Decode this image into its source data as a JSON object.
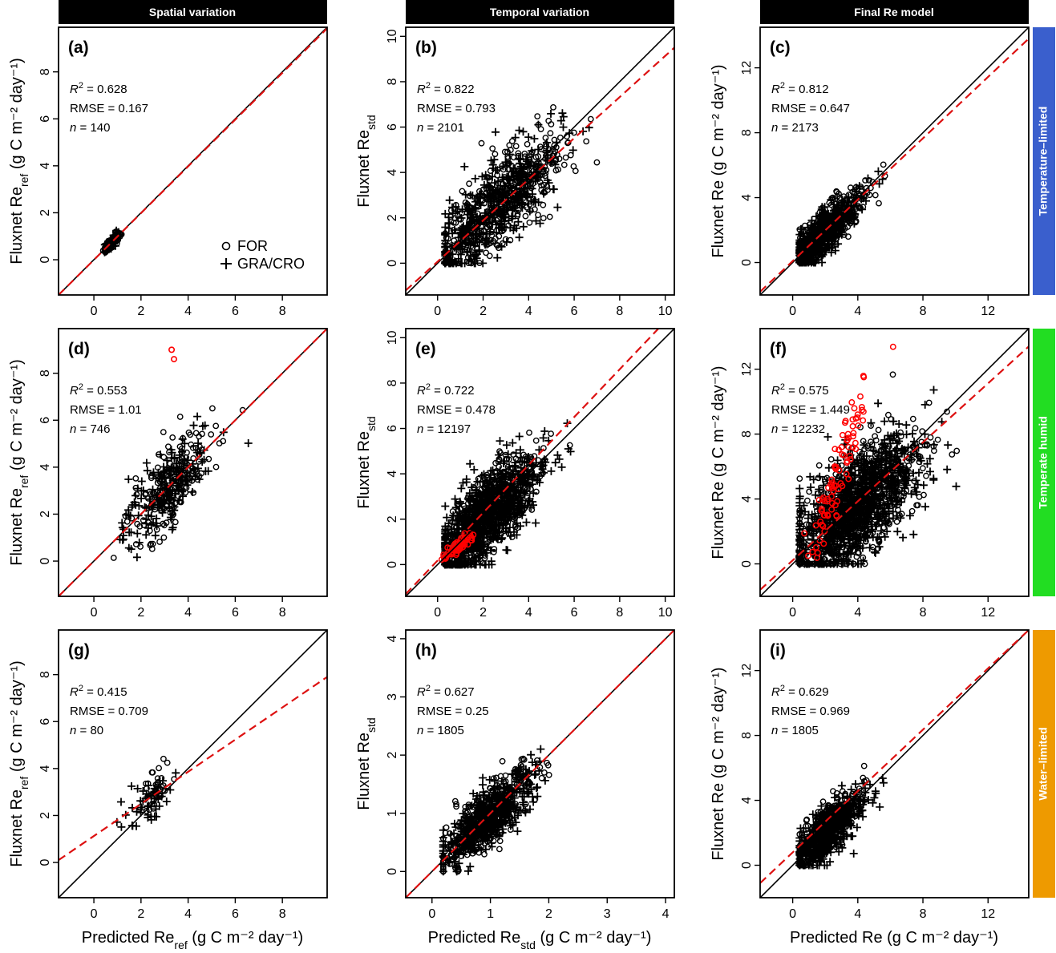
{
  "column_headers": [
    "Spatial variation",
    "Temporal variation",
    "Final Re model"
  ],
  "row_labels": [
    {
      "text": "Temperature–limited",
      "color": "#3a5fcd"
    },
    {
      "text": "Temperate humid",
      "color": "#22dd22"
    },
    {
      "text": "Water–limited",
      "color": "#ee9a00"
    }
  ],
  "legend": {
    "items": [
      "FOR",
      "GRA/CRO"
    ]
  },
  "colors": {
    "points": "#000000",
    "highlight": "#ff0000",
    "fit_line": "#dd1111",
    "one_to_one": "#000000"
  },
  "chart_data": [
    {
      "type": "scatter",
      "panel": "(a)",
      "ylabel": "Fluxnet Re",
      "ylabel_sub": "ref",
      "ylabel_unit": " (g C m⁻² day⁻¹)",
      "r2": "0.628",
      "rmse": "0.167",
      "n": "140",
      "xlim": [
        -1.5,
        9.9
      ],
      "ylim": [
        -1.5,
        9.9
      ],
      "xticks": [
        0,
        2,
        4,
        6,
        8
      ],
      "yticks": [
        0,
        2,
        4,
        6,
        8
      ],
      "fit": [
        [
          -1.5,
          -1.5
        ],
        [
          9.9,
          9.85
        ]
      ],
      "clusters": [
        {
          "cx": 0.8,
          "cy": 0.8,
          "sx": 0.18,
          "sy": 0.22,
          "corr": 0.85,
          "n": 70,
          "marker": "o"
        },
        {
          "cx": 0.7,
          "cy": 0.65,
          "sx": 0.15,
          "sy": 0.2,
          "corr": 0.8,
          "n": 70,
          "marker": "+"
        }
      ]
    },
    {
      "type": "scatter",
      "panel": "(b)",
      "ylabel": "Fluxnet Re",
      "ylabel_sub": "std",
      "ylabel_unit": "",
      "r2": "0.822",
      "rmse": "0.793",
      "n": "2101",
      "xlim": [
        -1.4,
        10.4
      ],
      "ylim": [
        -1.4,
        10.4
      ],
      "xticks": [
        0,
        2,
        4,
        6,
        8,
        10
      ],
      "yticks": [
        0,
        2,
        4,
        6,
        8,
        10
      ],
      "fit": [
        [
          -1.4,
          -1.2
        ],
        [
          10.4,
          9.5
        ]
      ],
      "clusters": [
        {
          "cx": 2.6,
          "cy": 2.5,
          "sx": 1.5,
          "sy": 1.6,
          "corr": 0.82,
          "n": 420,
          "marker": "o"
        },
        {
          "cx": 2.4,
          "cy": 2.3,
          "sx": 1.5,
          "sy": 1.6,
          "corr": 0.8,
          "n": 420,
          "marker": "+"
        }
      ]
    },
    {
      "type": "scatter",
      "panel": "(c)",
      "ylabel": "Fluxnet Re",
      "ylabel_sub": "",
      "ylabel_unit": " (g C m⁻² day⁻¹)",
      "r2": "0.812",
      "rmse": "0.647",
      "n": "2173",
      "xlim": [
        -2,
        14.5
      ],
      "ylim": [
        -2,
        14.5
      ],
      "xticks": [
        0,
        4,
        8,
        12
      ],
      "yticks": [
        0,
        4,
        8,
        12
      ],
      "fit": [
        [
          -2,
          -1.8
        ],
        [
          14.5,
          13.8
        ]
      ],
      "clusters": [
        {
          "cx": 1.9,
          "cy": 1.9,
          "sx": 1.2,
          "sy": 1.3,
          "corr": 0.85,
          "n": 420,
          "marker": "o"
        },
        {
          "cx": 1.8,
          "cy": 1.7,
          "sx": 1.2,
          "sy": 1.3,
          "corr": 0.82,
          "n": 420,
          "marker": "+"
        }
      ]
    },
    {
      "type": "scatter",
      "panel": "(d)",
      "ylabel": "Fluxnet Re",
      "ylabel_sub": "ref",
      "ylabel_unit": " (g C m⁻² day⁻¹)",
      "r2": "0.553",
      "rmse": "1.01",
      "n": "746",
      "xlim": [
        -1.5,
        9.9
      ],
      "ylim": [
        -1.5,
        9.9
      ],
      "xticks": [
        0,
        2,
        4,
        6,
        8
      ],
      "yticks": [
        0,
        2,
        4,
        6,
        8
      ],
      "fit": [
        [
          -1.5,
          -1.5
        ],
        [
          9.9,
          9.9
        ]
      ],
      "clusters": [
        {
          "cx": 3.3,
          "cy": 3.3,
          "sx": 0.9,
          "sy": 1.2,
          "corr": 0.7,
          "n": 180,
          "marker": "o"
        },
        {
          "cx": 3.0,
          "cy": 3.0,
          "sx": 1.0,
          "sy": 1.2,
          "corr": 0.7,
          "n": 180,
          "marker": "+"
        }
      ],
      "highlight_points": [
        [
          3.3,
          9.0
        ],
        [
          3.4,
          8.6
        ]
      ]
    },
    {
      "type": "scatter",
      "panel": "(e)",
      "ylabel": "Fluxnet Re",
      "ylabel_sub": "std",
      "ylabel_unit": "",
      "r2": "0.722",
      "rmse": "0.478",
      "n": "12197",
      "xlim": [
        -1.4,
        10.4
      ],
      "ylim": [
        -1.4,
        10.4
      ],
      "xticks": [
        0,
        2,
        4,
        6,
        8,
        10
      ],
      "yticks": [
        0,
        2,
        4,
        6,
        8,
        10
      ],
      "fit": [
        [
          -1.4,
          -1.3
        ],
        [
          9.7,
          10.4
        ]
      ],
      "clusters": [
        {
          "cx": 1.9,
          "cy": 1.9,
          "sx": 1.0,
          "sy": 1.3,
          "corr": 0.75,
          "n": 700,
          "marker": "o"
        },
        {
          "cx": 2.1,
          "cy": 2.0,
          "sx": 1.2,
          "sy": 1.4,
          "corr": 0.72,
          "n": 700,
          "marker": "+"
        }
      ],
      "highlight_cluster": {
        "cx": 0.9,
        "cy": 0.8,
        "sx": 0.35,
        "sy": 0.35,
        "corr": 0.9,
        "n": 60
      }
    },
    {
      "type": "scatter",
      "panel": "(f)",
      "ylabel": "Fluxnet Re",
      "ylabel_sub": "",
      "ylabel_unit": " (g C m⁻² day⁻¹)",
      "r2": "0.575",
      "rmse": "1.449",
      "n": "12232",
      "xlim": [
        -2,
        14.5
      ],
      "ylim": [
        -2,
        14.5
      ],
      "xticks": [
        0,
        4,
        8,
        12
      ],
      "yticks": [
        0,
        4,
        8,
        12
      ],
      "fit": [
        [
          -2,
          -1.6
        ],
        [
          14.5,
          13.4
        ]
      ],
      "clusters": [
        {
          "cx": 3.6,
          "cy": 3.4,
          "sx": 2.0,
          "sy": 2.2,
          "corr": 0.7,
          "n": 800,
          "marker": "o"
        },
        {
          "cx": 3.8,
          "cy": 3.5,
          "sx": 2.1,
          "sy": 2.2,
          "corr": 0.68,
          "n": 800,
          "marker": "+"
        }
      ],
      "highlight_cluster": {
        "cx": 2.8,
        "cy": 5.5,
        "sx": 1.0,
        "sy": 3.0,
        "corr": 0.9,
        "n": 90
      }
    },
    {
      "type": "scatter",
      "panel": "(g)",
      "ylabel": "Fluxnet Re",
      "ylabel_sub": "ref",
      "ylabel_unit": " (g C m⁻² day⁻¹)",
      "r2": "0.415",
      "rmse": "0.709",
      "n": "80",
      "xlim": [
        -1.5,
        9.9
      ],
      "ylim": [
        -1.5,
        9.9
      ],
      "xticks": [
        0,
        2,
        4,
        6,
        8
      ],
      "yticks": [
        0,
        2,
        4,
        6,
        8
      ],
      "fit": [
        [
          -1.5,
          0.1
        ],
        [
          9.9,
          7.9
        ]
      ],
      "clusters": [
        {
          "cx": 2.7,
          "cy": 3.2,
          "sx": 0.3,
          "sy": 0.6,
          "corr": 0.5,
          "n": 35,
          "marker": "o"
        },
        {
          "cx": 2.1,
          "cy": 2.4,
          "sx": 0.6,
          "sy": 0.6,
          "corr": 0.6,
          "n": 45,
          "marker": "+"
        }
      ]
    },
    {
      "type": "scatter",
      "panel": "(h)",
      "ylabel": "Fluxnet Re",
      "ylabel_sub": "std",
      "ylabel_unit": "",
      "r2": "0.627",
      "rmse": "0.25",
      "n": "1805",
      "xlim": [
        -0.45,
        4.15
      ],
      "ylim": [
        -0.45,
        4.15
      ],
      "xticks": [
        0,
        1,
        2,
        3,
        4
      ],
      "yticks": [
        0,
        1,
        2,
        3,
        4
      ],
      "fit": [
        [
          -0.45,
          -0.45
        ],
        [
          4.15,
          4.15
        ]
      ],
      "clusters": [
        {
          "cx": 0.95,
          "cy": 0.95,
          "sx": 0.35,
          "sy": 0.4,
          "corr": 0.8,
          "n": 420,
          "marker": "o"
        },
        {
          "cx": 1.0,
          "cy": 0.95,
          "sx": 0.4,
          "sy": 0.42,
          "corr": 0.78,
          "n": 420,
          "marker": "+"
        }
      ]
    },
    {
      "type": "scatter",
      "panel": "(i)",
      "ylabel": "Fluxnet Re",
      "ylabel_sub": "",
      "ylabel_unit": " (g C m⁻² day⁻¹)",
      "r2": "0.629",
      "rmse": "0.969",
      "n": "1805",
      "xlim": [
        -2,
        14.5
      ],
      "ylim": [
        -2,
        14.5
      ],
      "xticks": [
        0,
        4,
        8,
        12
      ],
      "yticks": [
        0,
        4,
        8,
        12
      ],
      "fit": [
        [
          -2,
          -1.1
        ],
        [
          14.5,
          14.5
        ]
      ],
      "clusters": [
        {
          "cx": 2.0,
          "cy": 2.1,
          "sx": 1.0,
          "sy": 1.2,
          "corr": 0.8,
          "n": 420,
          "marker": "o"
        },
        {
          "cx": 2.2,
          "cy": 2.0,
          "sx": 1.1,
          "sy": 1.2,
          "corr": 0.78,
          "n": 420,
          "marker": "+"
        }
      ]
    }
  ],
  "x_axis_titles": [
    {
      "main": "Predicted Re",
      "sub": "ref",
      "unit": " (g C m⁻² day⁻¹)"
    },
    {
      "main": "Predicted Re",
      "sub": "std",
      "unit": " (g C m⁻² day⁻¹)"
    },
    {
      "main": "Predicted Re",
      "sub": "",
      "unit": " (g C m⁻² day⁻¹)"
    }
  ]
}
